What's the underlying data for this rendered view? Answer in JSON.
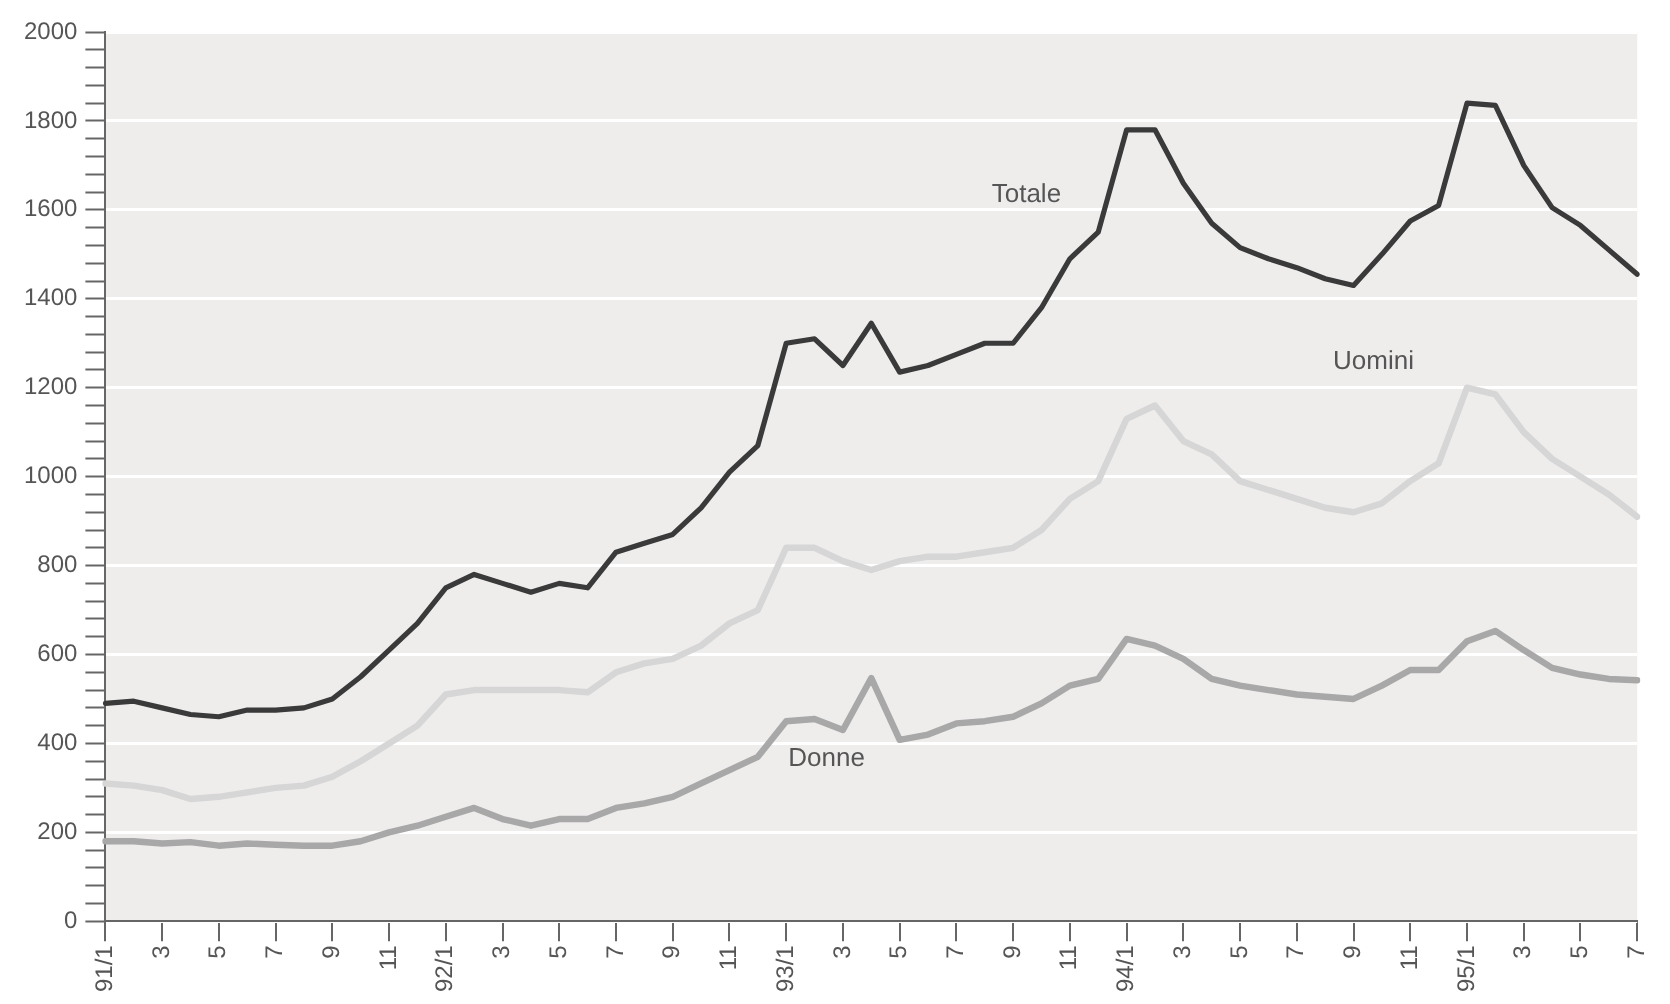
{
  "chart_data": {
    "type": "line",
    "categories": [
      "91/1",
      null,
      "3",
      null,
      "5",
      null,
      "7",
      null,
      "9",
      null,
      "11",
      null,
      "92/1",
      null,
      "3",
      null,
      "5",
      null,
      "7",
      null,
      "9",
      null,
      "11",
      null,
      "93/1",
      null,
      "3",
      null,
      "5",
      null,
      "7",
      null,
      "9",
      null,
      "11",
      null,
      "94/1",
      null,
      "3",
      null,
      "5",
      null,
      "7",
      null,
      "9",
      null,
      "11",
      null,
      "95/1",
      null,
      "3",
      null,
      "5",
      null,
      "7"
    ],
    "series": [
      {
        "name": "Totale",
        "color": "#3a3a3a",
        "values": [
          490,
          495,
          480,
          465,
          460,
          475,
          475,
          480,
          500,
          550,
          610,
          670,
          750,
          780,
          760,
          740,
          760,
          750,
          830,
          850,
          870,
          930,
          1010,
          1070,
          1300,
          1310,
          1250,
          1345,
          1235,
          1250,
          1275,
          1300,
          1300,
          1380,
          1490,
          1550,
          1780,
          1780,
          1660,
          1570,
          1515,
          1490,
          1470,
          1445,
          1430,
          1500,
          1575,
          1610,
          1840,
          1835,
          1700,
          1605,
          1565,
          1510,
          1455
        ]
      },
      {
        "name": "Uomini",
        "color": "#d6d6d6",
        "values": [
          310,
          305,
          295,
          275,
          280,
          290,
          300,
          305,
          325,
          360,
          400,
          440,
          510,
          520,
          520,
          520,
          520,
          515,
          560,
          580,
          590,
          620,
          670,
          700,
          840,
          840,
          810,
          790,
          810,
          820,
          820,
          830,
          840,
          880,
          950,
          990,
          1130,
          1160,
          1080,
          1050,
          990,
          970,
          950,
          930,
          920,
          940,
          990,
          1030,
          1200,
          1185,
          1100,
          1040,
          1000,
          960,
          910
        ]
      },
      {
        "name": "Donne",
        "color": "#a8a8a8",
        "values": [
          180,
          180,
          175,
          178,
          170,
          175,
          172,
          170,
          170,
          180,
          200,
          215,
          235,
          255,
          230,
          215,
          230,
          230,
          255,
          265,
          280,
          310,
          340,
          370,
          450,
          455,
          430,
          547,
          408,
          420,
          445,
          450,
          460,
          490,
          530,
          545,
          635,
          620,
          590,
          545,
          530,
          520,
          510,
          505,
          500,
          530,
          565,
          565,
          630,
          653,
          610,
          570,
          555,
          545,
          542
        ]
      }
    ],
    "ylim": [
      0,
      2000
    ],
    "yticks": [
      0,
      {
        "value": 40,
        "label": null
      },
      {
        "value": 80,
        "label": null
      },
      {
        "value": 120,
        "label": null
      },
      {
        "value": 160,
        "label": null
      },
      200,
      {
        "value": 240,
        "label": null
      },
      {
        "value": 280,
        "label": null
      },
      {
        "value": 320,
        "label": null
      },
      {
        "value": 360,
        "label": null
      },
      400,
      {
        "value": 440,
        "label": null
      },
      {
        "value": 480,
        "label": null
      },
      {
        "value": 520,
        "label": null
      },
      {
        "value": 560,
        "label": null
      },
      600,
      {
        "value": 640,
        "label": null
      },
      {
        "value": 680,
        "label": null
      },
      {
        "value": 720,
        "label": null
      },
      {
        "value": 760,
        "label": null
      },
      800,
      {
        "value": 840,
        "label": null
      },
      {
        "value": 880,
        "label": null
      },
      {
        "value": 920,
        "label": null
      },
      {
        "value": 960,
        "label": null
      },
      1000,
      {
        "value": 1040,
        "label": null
      },
      {
        "value": 1080,
        "label": null
      },
      {
        "value": 1120,
        "label": null
      },
      {
        "value": 1160,
        "label": null
      },
      1200,
      {
        "value": 1240,
        "label": null
      },
      {
        "value": 1280,
        "label": null
      },
      {
        "value": 1320,
        "label": null
      },
      {
        "value": 1360,
        "label": null
      },
      1400,
      {
        "value": 1440,
        "label": null
      },
      {
        "value": 1480,
        "label": null
      },
      {
        "value": 1520,
        "label": null
      },
      {
        "value": 1560,
        "label": null
      },
      1600,
      {
        "value": 1640,
        "label": null
      },
      {
        "value": 1680,
        "label": null
      },
      {
        "value": 1720,
        "label": null
      },
      {
        "value": 1760,
        "label": null
      },
      1800,
      {
        "value": 1840,
        "label": null
      },
      {
        "value": 1880,
        "label": null
      },
      {
        "value": 1920,
        "label": null
      },
      {
        "value": 1960,
        "label": null
      },
      2000
    ],
    "grid": "y",
    "legend": false,
    "marker": "none",
    "line_style": "solid"
  }
}
